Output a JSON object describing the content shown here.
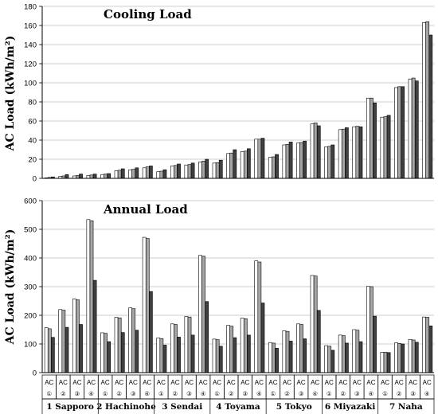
{
  "chart_data": [
    {
      "type": "bar",
      "title": "Cooling Load",
      "ylabel": "AC Load (kWh/m²)",
      "ylim": [
        0,
        180
      ],
      "yticks": [
        "0",
        "20",
        "40",
        "60",
        "80",
        "100",
        "120",
        "140",
        "160",
        "180"
      ],
      "grid": true,
      "series_colors": [
        "#ffffff",
        "#a6a6a6",
        "#404040"
      ],
      "groups": [
        {
          "city": "1 Sapporo",
          "values": [
            [
              0.5,
              1,
              1.5
            ],
            [
              2,
              2.5,
              4
            ],
            [
              2.5,
              3,
              4.5
            ],
            [
              3,
              3.5,
              4.5
            ]
          ]
        },
        {
          "city": "2 Hachinohe",
          "values": [
            [
              4,
              4.5,
              5
            ],
            [
              8,
              8.5,
              10
            ],
            [
              9,
              9.5,
              11
            ],
            [
              11,
              12,
              13
            ]
          ]
        },
        {
          "city": "3 Sendai",
          "values": [
            [
              7,
              7.5,
              9
            ],
            [
              13,
              13.5,
              15
            ],
            [
              14,
              14.5,
              16
            ],
            [
              17,
              18,
              20
            ]
          ]
        },
        {
          "city": "4 Toyama",
          "values": [
            [
              16,
              16.5,
              19
            ],
            [
              26,
              26.5,
              30
            ],
            [
              28,
              28.5,
              31
            ],
            [
              41,
              41,
              42
            ]
          ]
        },
        {
          "city": "5 Tokyo",
          "values": [
            [
              22,
              22.5,
              25
            ],
            [
              35,
              35.5,
              38
            ],
            [
              37,
              37.5,
              39
            ],
            [
              57,
              58,
              55
            ]
          ]
        },
        {
          "city": "6 Miyazaki",
          "values": [
            [
              33,
              33.5,
              35
            ],
            [
              51,
              51.5,
              53
            ],
            [
              54,
              54.5,
              54
            ],
            [
              84,
              84,
              79
            ]
          ]
        },
        {
          "city": "7 Naha",
          "values": [
            [
              64,
              64.5,
              66
            ],
            [
              95,
              96,
              96
            ],
            [
              104,
              105,
              102
            ],
            [
              163,
              164,
              150
            ]
          ]
        }
      ]
    },
    {
      "type": "bar",
      "title": "Annual Load",
      "ylabel": "AC Load (kWh/m²)",
      "ylim": [
        0,
        600
      ],
      "yticks": [
        "0",
        "100",
        "200",
        "300",
        "400",
        "500",
        "600"
      ],
      "grid": true,
      "series_colors": [
        "#ffffff",
        "#a6a6a6",
        "#404040"
      ],
      "groups": [
        {
          "city": "1 Sapporo",
          "values": [
            [
              157,
              153,
              123
            ],
            [
              220,
              218,
              158
            ],
            [
              257,
              254,
              168
            ],
            [
              534,
              530,
              322
            ]
          ]
        },
        {
          "city": "2 Hachinohe",
          "values": [
            [
              139,
              137,
              108
            ],
            [
              193,
              191,
              140
            ],
            [
              226,
              223,
              148
            ],
            [
              472,
              468,
              283
            ]
          ]
        },
        {
          "city": "3 Sendai",
          "values": [
            [
              121,
              119,
              96
            ],
            [
              170,
              168,
              124
            ],
            [
              196,
              194,
              131
            ],
            [
              409,
              406,
              248
            ]
          ]
        },
        {
          "city": "4 Toyama",
          "values": [
            [
              117,
              115,
              92
            ],
            [
              165,
              162,
              122
            ],
            [
              190,
              188,
              131
            ],
            [
              390,
              386,
              243
            ]
          ]
        },
        {
          "city": "5 Tokyo",
          "values": [
            [
              105,
              103,
              85
            ],
            [
              146,
              144,
              110
            ],
            [
              170,
              168,
              118
            ],
            [
              339,
              337,
              217
            ]
          ]
        },
        {
          "city": "6 Miyazaki",
          "values": [
            [
              94,
              92,
              78
            ],
            [
              131,
              129,
              103
            ],
            [
              150,
              148,
              108
            ],
            [
              301,
              300,
              197
            ]
          ]
        },
        {
          "city": "7 Naha",
          "values": [
            [
              71,
              71,
              70
            ],
            [
              104,
              102,
              100
            ],
            [
              116,
              114,
              106
            ],
            [
              194,
              193,
              163
            ]
          ]
        }
      ]
    }
  ],
  "x_axis": {
    "ac_label": "AC",
    "case_labels": [
      "①",
      "②",
      "③",
      "④"
    ],
    "city_labels": [
      "1 Sapporo",
      "2 Hachinohe",
      "3 Sendai",
      "4 Toyama",
      "5 Tokyo",
      "6 Miyazaki",
      "7 Naha"
    ]
  }
}
